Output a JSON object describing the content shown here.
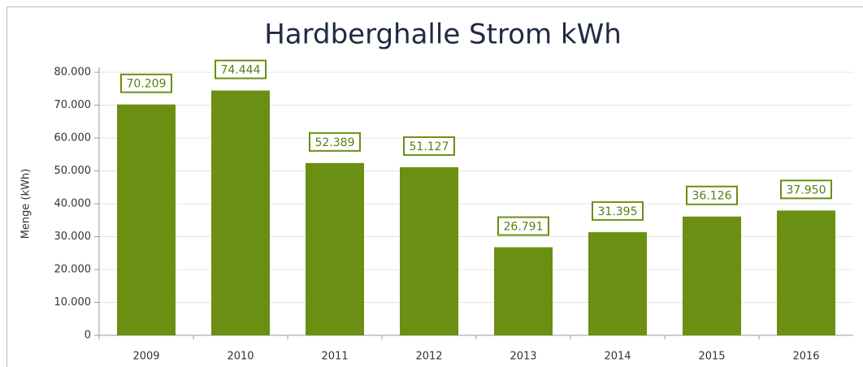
{
  "chart_data": {
    "type": "bar",
    "title": "Hardberghalle Strom kWh",
    "y_label": "Menge (kWh)",
    "categories": [
      "2009",
      "2010",
      "2011",
      "2012",
      "2013",
      "2014",
      "2015",
      "2016"
    ],
    "values": [
      70209,
      74444,
      52389,
      51127,
      26791,
      31395,
      36126,
      37950
    ],
    "value_labels": [
      "70.209",
      "74.444",
      "52.389",
      "51.127",
      "26.791",
      "31.395",
      "36.126",
      "37.950"
    ],
    "color": "#6a8f12",
    "ylim": [
      0,
      80000
    ],
    "yticks": [
      0,
      {
        "value": 10000,
        "label": "10.000"
      },
      {
        "value": 20000,
        "label": "20.000"
      },
      {
        "value": 30000,
        "label": "30.000"
      },
      {
        "value": 40000,
        "label": "40.000"
      },
      {
        "value": 50000,
        "label": "50.000"
      },
      {
        "value": 60000,
        "label": "60.000"
      },
      {
        "value": 70000,
        "label": "70.000"
      },
      {
        "value": 80000,
        "label": "80.000"
      }
    ],
    "grid": true
  }
}
